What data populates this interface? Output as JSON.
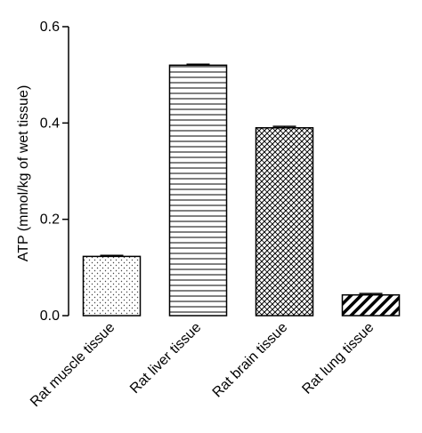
{
  "chart_data": {
    "type": "bar",
    "title": "",
    "xlabel": "",
    "ylabel": "ATP (mmol/kg of wet tissue)",
    "ylim": [
      0,
      0.6
    ],
    "yticks": [
      "0.0",
      "0.2",
      "0.4",
      "0.6"
    ],
    "grid": false,
    "legend": "none",
    "categories": [
      "Rat muscle tissue",
      "Rat liver tissue",
      "Rat brain tissue",
      "Rat lung tissue"
    ],
    "values": [
      0.123,
      0.52,
      0.39,
      0.043
    ],
    "errors": [
      0.002,
      0.002,
      0.003,
      0.003
    ],
    "patterns": [
      "dots",
      "horizontal-lines",
      "crosshatch",
      "diagonal-stripes"
    ]
  }
}
